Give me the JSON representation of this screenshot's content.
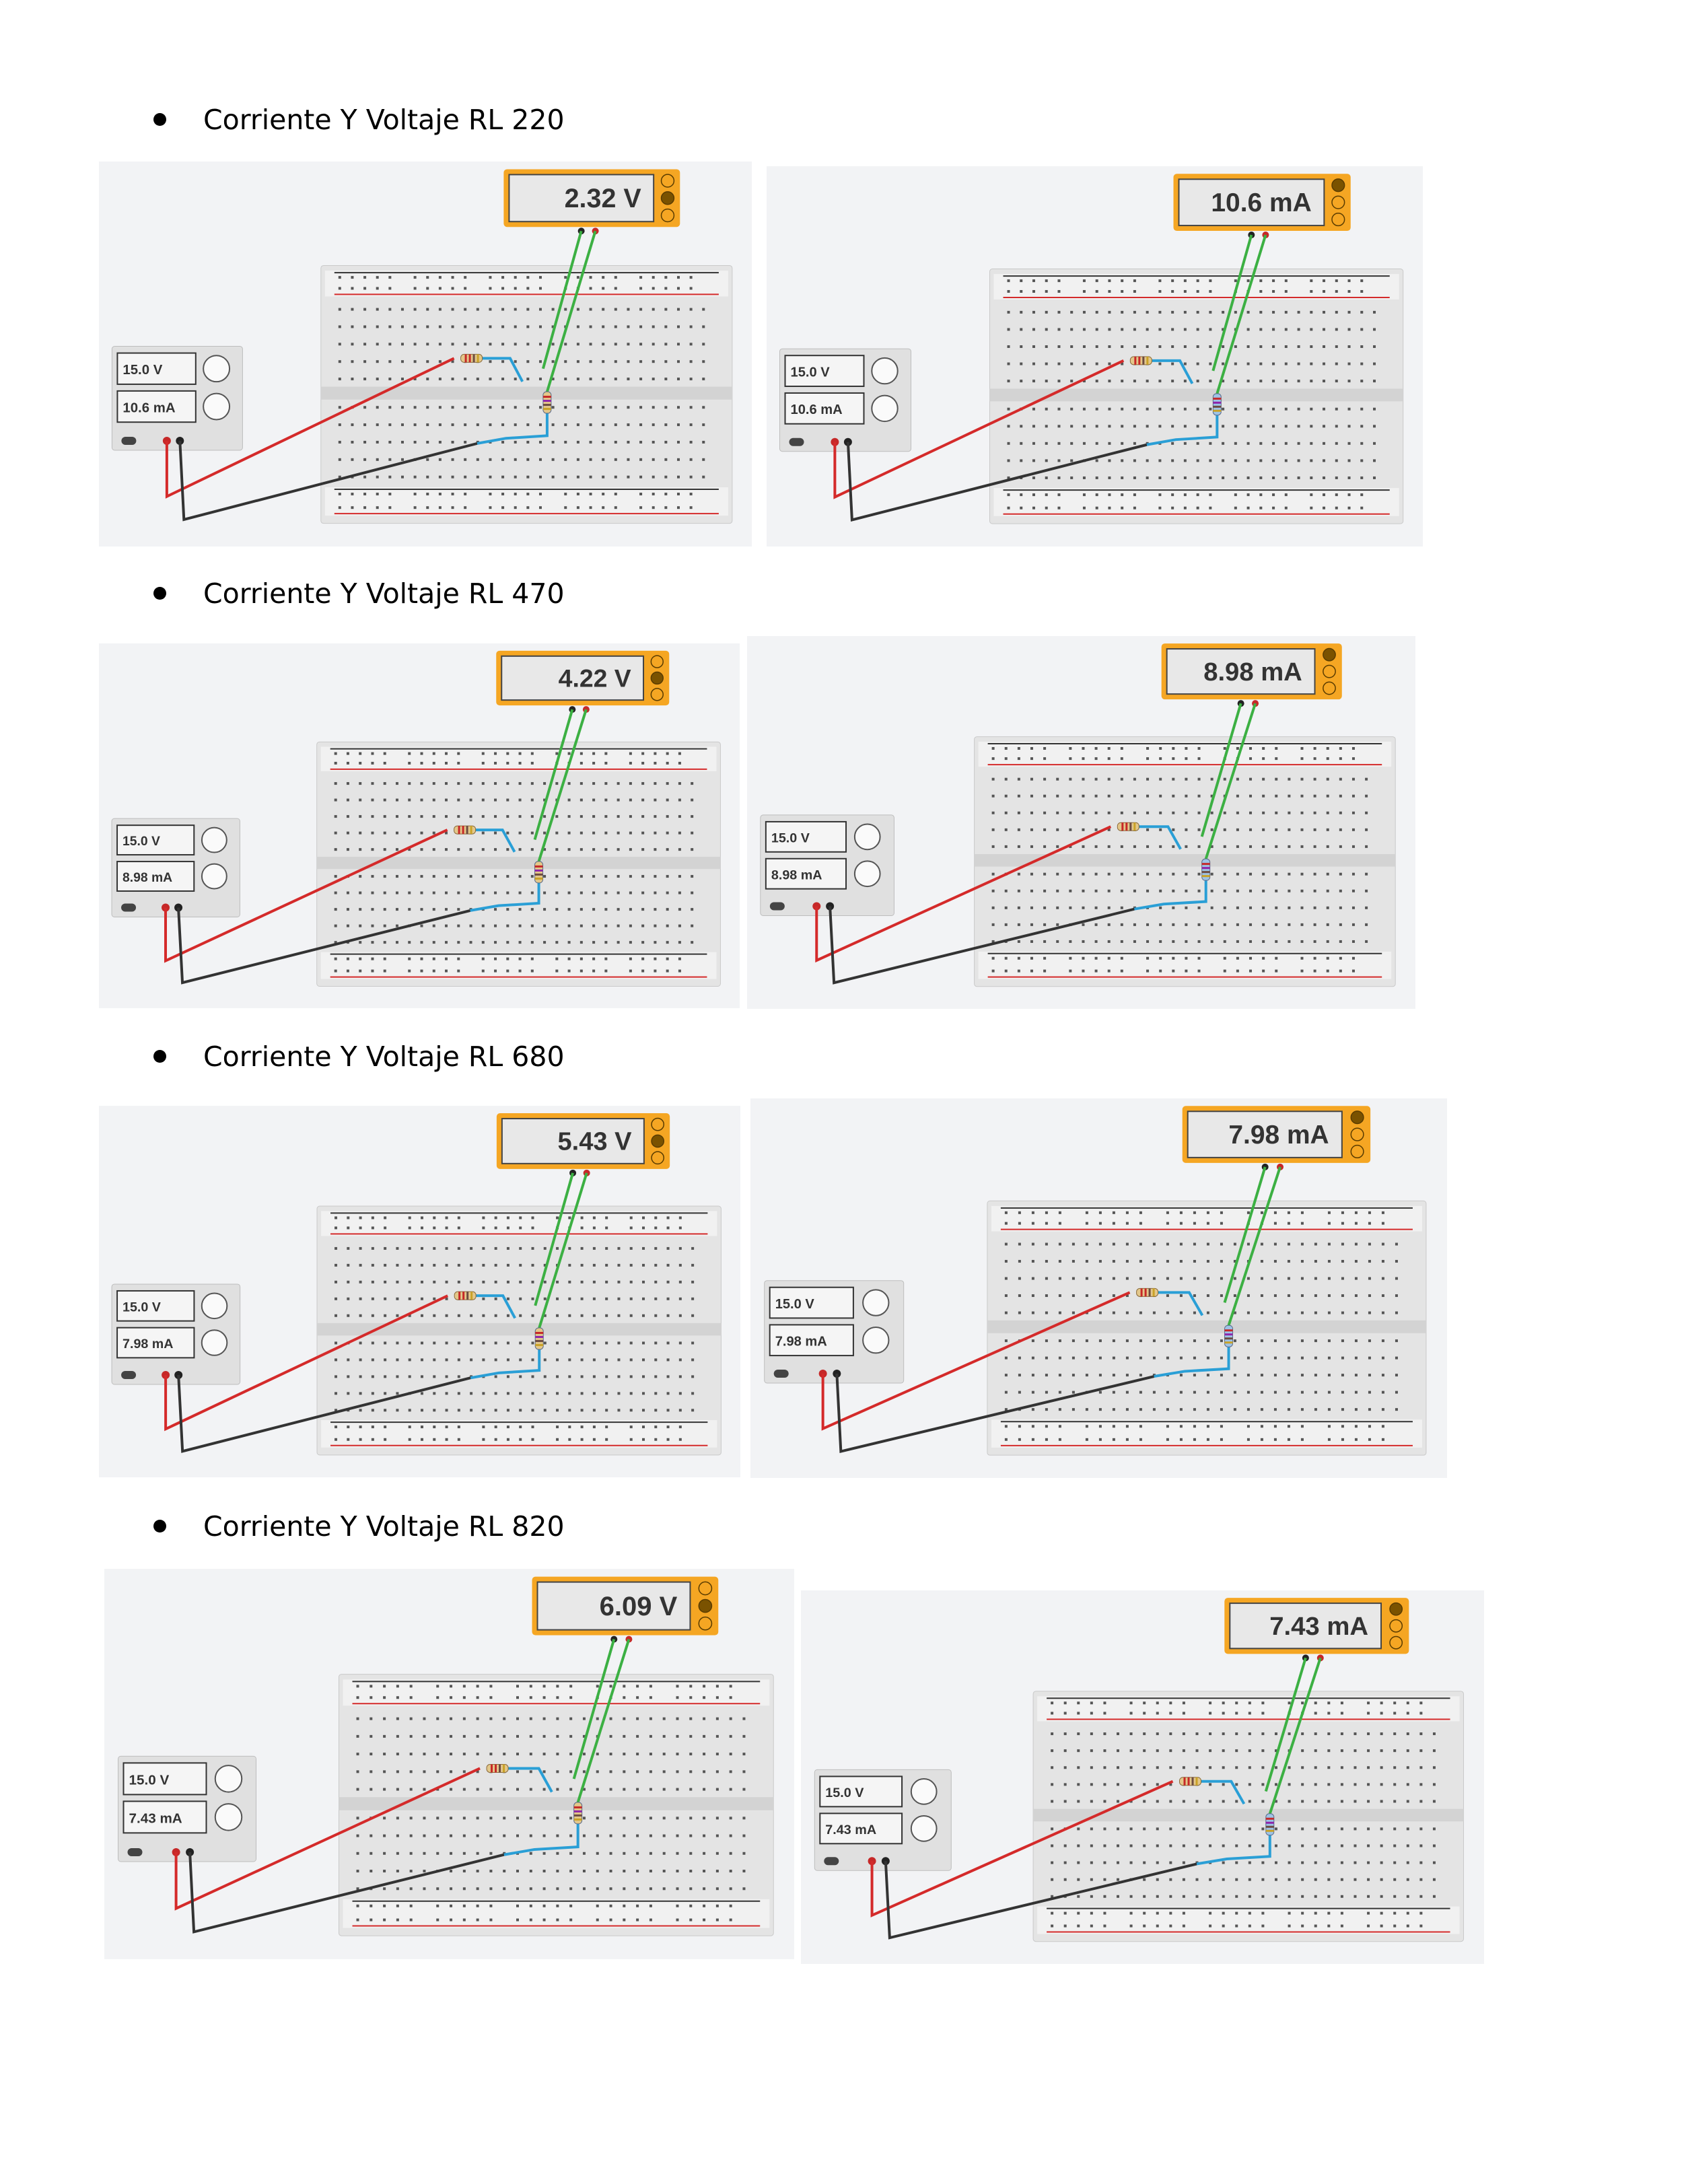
{
  "sections": [
    {
      "heading": "Corriente Y Voltaje RL 220",
      "left": {
        "meter_reading": "2.32 V",
        "supply_voltage": "15.0 V",
        "supply_current": "10.6 mA"
      },
      "right": {
        "meter_reading": "10.6 mA",
        "supply_voltage": "15.0 V",
        "supply_current": "10.6 mA"
      }
    },
    {
      "heading": "Corriente Y Voltaje RL 470",
      "left": {
        "meter_reading": "4.22 V",
        "supply_voltage": "15.0 V",
        "supply_current": "8.98 mA"
      },
      "right": {
        "meter_reading": "8.98 mA",
        "supply_voltage": "15.0 V",
        "supply_current": "8.98 mA"
      }
    },
    {
      "heading": "Corriente Y Voltaje RL 680",
      "left": {
        "meter_reading": "5.43 V",
        "supply_voltage": "15.0 V",
        "supply_current": "7.98 mA"
      },
      "right": {
        "meter_reading": "7.98 mA",
        "supply_voltage": "15.0 V",
        "supply_current": "7.98 mA"
      }
    },
    {
      "heading": "Corriente Y Voltaje RL 820",
      "left": {
        "meter_reading": "6.09 V",
        "supply_voltage": "15.0 V",
        "supply_current": "7.43 mA"
      },
      "right": {
        "meter_reading": "7.43 mA",
        "supply_voltage": "15.0 V",
        "supply_current": "7.43 mA"
      }
    }
  ],
  "colors": {
    "meter_frame": "#f5a623",
    "red_wire": "#d42a2a",
    "black_wire": "#333333",
    "green_wire": "#3cb043",
    "blue_wire": "#2a9fd6"
  }
}
